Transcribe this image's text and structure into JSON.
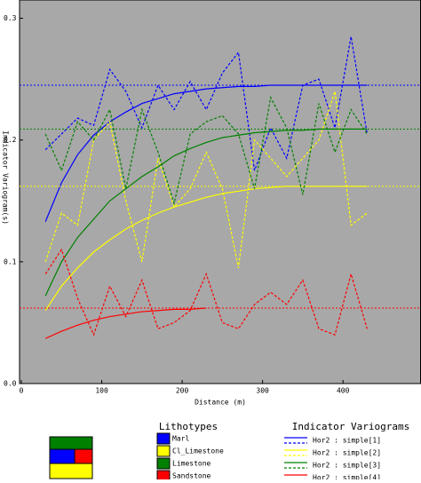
{
  "chart_data": {
    "type": "line",
    "x_label": "Distance (m)",
    "y_label": "Indicator Variogram(s)",
    "xlim": [
      0,
      497
    ],
    "ylim": [
      0,
      0.315
    ],
    "xticks": [
      0,
      100,
      200,
      300,
      400
    ],
    "yticks": [
      {
        "value": 0,
        "label": "0.0"
      },
      {
        "value": 0.1,
        "label": "0.1"
      },
      {
        "value": 0.2,
        "label": "0.2"
      },
      {
        "value": 0.3,
        "label": "0.3"
      }
    ],
    "x": [
      30,
      50,
      70,
      90,
      110,
      130,
      150,
      170,
      190,
      210,
      230,
      250,
      270,
      290,
      310,
      330,
      350,
      370,
      390,
      410,
      430
    ],
    "series": [
      {
        "name": "Marl",
        "color": "#0000ff",
        "sill": 0.245,
        "experimental": [
          0.192,
          0.205,
          0.218,
          0.212,
          0.258,
          0.24,
          0.21,
          0.245,
          0.225,
          0.248,
          0.225,
          0.255,
          0.272,
          0.175,
          0.21,
          0.185,
          0.245,
          0.25,
          0.21,
          0.285,
          0.205
        ],
        "model": [
          0.133,
          0.165,
          0.188,
          0.204,
          0.215,
          0.223,
          0.23,
          0.234,
          0.238,
          0.24,
          0.242,
          0.243,
          0.244,
          0.244,
          0.245,
          0.245,
          0.245,
          0.245,
          0.245,
          0.245,
          0.245
        ]
      },
      {
        "name": "Cl_Limestone",
        "color": "#ffff00",
        "sill": 0.162,
        "experimental": [
          0.1,
          0.14,
          0.13,
          0.2,
          0.215,
          0.15,
          0.1,
          0.185,
          0.145,
          0.16,
          0.19,
          0.16,
          0.095,
          0.2,
          0.185,
          0.17,
          0.185,
          0.2,
          0.24,
          0.13,
          0.14
        ],
        "model": [
          0.06,
          0.08,
          0.095,
          0.108,
          0.118,
          0.127,
          0.134,
          0.14,
          0.145,
          0.149,
          0.153,
          0.156,
          0.158,
          0.16,
          0.161,
          0.162,
          0.162,
          0.162,
          0.162,
          0.162,
          0.162
        ]
      },
      {
        "name": "Limestone",
        "color": "#008000",
        "sill": 0.209,
        "experimental": [
          0.205,
          0.175,
          0.215,
          0.2,
          0.225,
          0.16,
          0.225,
          0.19,
          0.148,
          0.205,
          0.215,
          0.22,
          0.205,
          0.16,
          0.235,
          0.21,
          0.155,
          0.23,
          0.19,
          0.225,
          0.205
        ],
        "model": [
          0.072,
          0.1,
          0.12,
          0.135,
          0.15,
          0.16,
          0.17,
          0.178,
          0.187,
          0.193,
          0.198,
          0.202,
          0.204,
          0.206,
          0.207,
          0.208,
          0.208,
          0.209,
          0.209,
          0.209,
          0.209
        ]
      },
      {
        "name": "Sandstone",
        "color": "#ff0000",
        "sill": 0.062,
        "experimental": [
          0.09,
          0.11,
          0.07,
          0.04,
          0.08,
          0.055,
          0.085,
          0.045,
          0.05,
          0.06,
          0.09,
          0.05,
          0.045,
          0.065,
          0.075,
          0.065,
          0.085,
          0.045,
          0.04,
          0.09,
          0.045
        ],
        "model": [
          0.037,
          0.043,
          0.048,
          0.052,
          0.055,
          0.057,
          0.059,
          0.06,
          0.061,
          0.061,
          0.062,
          null,
          null,
          null,
          null,
          null,
          null,
          null,
          null,
          null,
          null
        ]
      }
    ],
    "lithotypes_title": "Lithotypes",
    "variograms_title": "Indicator Variograms",
    "variogram_legend": [
      {
        "label": "Hor2 : simple[1]",
        "color": "#0000ff"
      },
      {
        "label": "Hor2 : simple[2]",
        "color": "#ffff00"
      },
      {
        "label": "Hor2 : simple[3]",
        "color": "#008000"
      },
      {
        "label": "Hor2 : simple[4]",
        "color": "#ff0000"
      }
    ]
  }
}
